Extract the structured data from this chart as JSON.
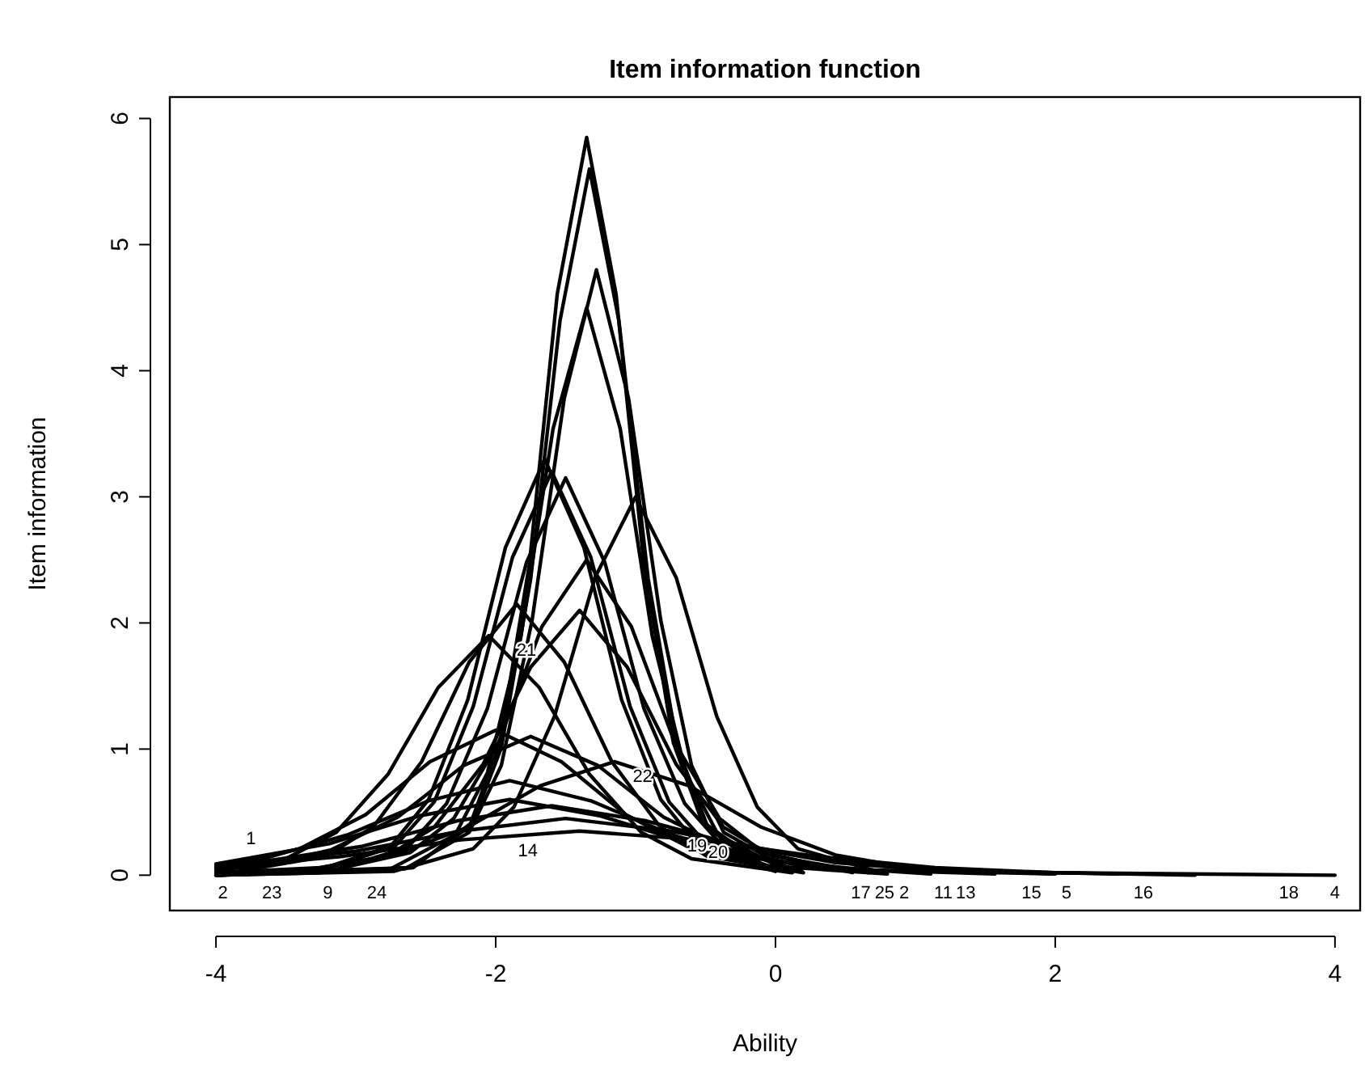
{
  "chart_data": {
    "type": "line",
    "title": "Item information function",
    "xlabel": "Ability",
    "ylabel": "Item information",
    "xlim": [
      -4.33,
      4.18
    ],
    "ylim": [
      -0.28,
      6.17
    ],
    "xticks": [
      -4,
      -2,
      0,
      2,
      4
    ],
    "yticks": [
      0,
      1,
      2,
      3,
      4,
      5,
      6
    ],
    "grid": false,
    "marker": "none",
    "line_style": "solid",
    "series": [
      {
        "color": "#000000",
        "x": [
          -4,
          -2.59,
          -2.18,
          -1.97,
          -1.76,
          -1.56,
          -1.35,
          -1.14,
          -0.94,
          -0.73,
          -0.52,
          -0.11
        ],
        "values": [
          0,
          0.06,
          0.41,
          1.05,
          2.46,
          4.61,
          5.85,
          4.61,
          2.46,
          1.05,
          0.41,
          0.06
        ]
      },
      {
        "color": "#000000",
        "x": [
          -4,
          -2.6,
          -2.17,
          -1.96,
          -1.75,
          -1.54,
          -1.33,
          -1.12,
          -0.91,
          -0.7,
          -0.49,
          -0.06
        ],
        "values": [
          0.01,
          0.06,
          0.4,
          1.01,
          2.35,
          4.4,
          5.6,
          4.4,
          2.35,
          1.01,
          0.4,
          0.06
        ]
      },
      {
        "color": "#000000",
        "x": [
          -4,
          -2.65,
          -2.19,
          -1.96,
          -1.74,
          -1.51,
          -1.28,
          -1.05,
          -0.82,
          -0.6,
          -0.37,
          0.09
        ],
        "values": [
          0,
          0.05,
          0.34,
          0.87,
          2.02,
          3.78,
          4.8,
          3.78,
          2.02,
          0.87,
          0.34,
          0.05
        ]
      },
      {
        "color": "#000000",
        "x": [
          -4,
          -2.77,
          -2.29,
          -2.06,
          -1.82,
          -1.59,
          -1.35,
          -1.11,
          -0.88,
          -0.64,
          -0.41,
          0.07
        ],
        "values": [
          0.01,
          0.04,
          0.32,
          0.81,
          1.89,
          3.54,
          4.5,
          3.54,
          1.89,
          0.81,
          0.32,
          0.04
        ]
      },
      {
        "color": "#000000",
        "x": [
          -4,
          -3.3,
          -2.75,
          -2.48,
          -2.2,
          -1.93,
          -1.65,
          -1.37,
          -1.1,
          -0.82,
          -0.55,
          0
        ],
        "values": [
          0,
          0.03,
          0.23,
          0.6,
          1.39,
          2.6,
          3.3,
          2.6,
          1.39,
          0.6,
          0.23,
          0.03
        ]
      },
      {
        "color": "#000000",
        "x": [
          -4,
          -3.27,
          -2.72,
          -2.44,
          -2.16,
          -1.88,
          -1.6,
          -1.32,
          -1.04,
          -0.76,
          -0.48,
          0.07
        ],
        "values": [
          0.01,
          0.03,
          0.23,
          0.58,
          1.34,
          2.52,
          3.2,
          2.52,
          1.34,
          0.58,
          0.23,
          0.03
        ]
      },
      {
        "color": "#000000",
        "x": [
          -4,
          -3.19,
          -2.63,
          -2.35,
          -2.06,
          -1.78,
          -1.5,
          -1.22,
          -0.94,
          -0.65,
          -0.37,
          0.19
        ],
        "values": [
          0,
          0.03,
          0.22,
          0.57,
          1.32,
          2.48,
          3.15,
          2.48,
          1.32,
          0.57,
          0.22,
          0.03
        ]
      },
      {
        "color": "#000000",
        "x": [
          -4,
          -2.73,
          -2.16,
          -1.87,
          -1.58,
          -1.29,
          -1,
          -0.71,
          -0.42,
          -0.13,
          0.16,
          0.73
        ],
        "values": [
          0,
          0.03,
          0.21,
          0.54,
          1.26,
          2.36,
          3,
          2.36,
          1.26,
          0.54,
          0.21,
          0.03
        ]
      },
      {
        "color": "#000000",
        "x": [
          -4,
          -3.25,
          -2.61,
          -2.3,
          -1.98,
          -1.67,
          -1.35,
          -1.03,
          -0.72,
          -0.4,
          -0.09,
          0.55
        ],
        "values": [
          0,
          0.02,
          0.18,
          0.45,
          1.05,
          1.97,
          2.5,
          1.97,
          1.05,
          0.45,
          0.18,
          0.02
        ]
      },
      {
        "color": "#000000",
        "x": [
          -4,
          -3.47,
          -2.78,
          -2.44,
          -2.09,
          -1.75,
          -1.4,
          -1.06,
          -0.71,
          -0.37,
          -0.02,
          0.67
        ],
        "values": [
          0,
          0.02,
          0.15,
          0.38,
          0.88,
          1.65,
          2.1,
          1.65,
          0.88,
          0.38,
          0.15,
          0.02
        ]
      },
      {
        "color": "#000000",
        "x": [
          -4,
          -3.9,
          -3.21,
          -2.87,
          -2.53,
          -2.19,
          -1.85,
          -1.51,
          -1.17,
          -0.83,
          -0.49,
          0.2
        ],
        "values": [
          0.02,
          0.02,
          0.15,
          0.39,
          0.9,
          1.69,
          2.15,
          1.69,
          0.9,
          0.39,
          0.15,
          0.02
        ]
      },
      {
        "color": "#000000",
        "x": [
          -4,
          -3.5,
          -3.14,
          -2.77,
          -2.41,
          -2.05,
          -1.69,
          -1.33,
          -0.96,
          -0.6,
          0.12
        ],
        "values": [
          0.03,
          0.13,
          0.34,
          0.8,
          1.49,
          1.9,
          1.49,
          0.8,
          0.34,
          0.13,
          0.02
        ]
      },
      {
        "color": "#000000",
        "x": [
          -4,
          -3.4,
          -2.93,
          -2.47,
          -2,
          -1.53,
          -1.07,
          -0.6,
          -0.13,
          0.8
        ],
        "values": [
          0.06,
          0.21,
          0.48,
          0.9,
          1.15,
          0.9,
          0.48,
          0.21,
          0.08,
          0.01
        ]
      },
      {
        "color": "#000000",
        "x": [
          -4,
          -3.65,
          -3.18,
          -2.7,
          -2.23,
          -1.75,
          -1.27,
          -0.8,
          -0.32,
          0.15,
          1.11
        ],
        "values": [
          0.04,
          0.08,
          0.2,
          0.46,
          0.87,
          1.1,
          0.87,
          0.46,
          0.2,
          0.08,
          0.01
        ]
      },
      {
        "color": "#000000",
        "x": [
          -4,
          -3.25,
          -2.73,
          -2.2,
          -1.68,
          -1.15,
          -0.62,
          -0.1,
          0.43,
          0.95,
          2
        ],
        "values": [
          0.02,
          0.06,
          0.16,
          0.38,
          0.71,
          0.9,
          0.71,
          0.38,
          0.16,
          0.06,
          0.01
        ]
      },
      {
        "color": "#000000",
        "x": [
          -4,
          -3.63,
          -3.06,
          -2.48,
          -1.9,
          -1.32,
          -0.74,
          -0.17,
          0.41,
          1.57
        ],
        "values": [
          0.08,
          0.14,
          0.32,
          0.59,
          0.75,
          0.59,
          0.32,
          0.14,
          0.05,
          0.01
        ]
      },
      {
        "color": "#000000",
        "x": [
          -4,
          -3.19,
          -2.55,
          -1.9,
          -1.25,
          -0.61,
          0.04,
          0.68,
          2
        ],
        "values": [
          0.09,
          0.25,
          0.47,
          0.6,
          0.47,
          0.25,
          0.11,
          0.04,
          0.01
        ]
      },
      {
        "color": "#000000",
        "x": [
          -4,
          -2.95,
          -2.28,
          -1.6,
          -0.92,
          -0.25,
          0.43,
          1.1,
          2.46
        ],
        "values": [
          0.05,
          0.23,
          0.43,
          0.55,
          0.43,
          0.23,
          0.1,
          0.04,
          0.01
        ]
      },
      {
        "color": "#000000",
        "x": [
          -4,
          -3,
          -2.25,
          -1.5,
          -0.75,
          0,
          0.74,
          1.48,
          3
        ],
        "values": [
          0.07,
          0.19,
          0.35,
          0.45,
          0.35,
          0.19,
          0.08,
          0.03,
          0
        ]
      },
      {
        "color": "#000000",
        "x": [
          -4,
          -3.09,
          -2.25,
          -1.4,
          -0.55,
          0.29,
          1.14,
          1.99,
          4
        ],
        "values": [
          0.06,
          0.15,
          0.28,
          0.35,
          0.28,
          0.15,
          0.06,
          0.02,
          0
        ]
      }
    ],
    "annotations": [
      {
        "text": "2",
        "x": -3.95,
        "y": -0.13
      },
      {
        "text": "1",
        "x": -3.75,
        "y": 0.3
      },
      {
        "text": "23",
        "x": -3.6,
        "y": -0.13
      },
      {
        "text": "9",
        "x": -3.2,
        "y": -0.13
      },
      {
        "text": "24",
        "x": -2.85,
        "y": -0.13
      },
      {
        "text": "14",
        "x": -1.77,
        "y": 0.2
      },
      {
        "text": "21",
        "x": -1.78,
        "y": 1.79
      },
      {
        "text": "22",
        "x": -0.95,
        "y": 0.79
      },
      {
        "text": "19",
        "x": -0.56,
        "y": 0.24
      },
      {
        "text": "20",
        "x": -0.41,
        "y": 0.19
      },
      {
        "text": "17",
        "x": 0.61,
        "y": -0.13
      },
      {
        "text": "25",
        "x": 0.78,
        "y": -0.13
      },
      {
        "text": "2",
        "x": 0.92,
        "y": -0.13
      },
      {
        "text": "11",
        "x": 1.2,
        "y": -0.13
      },
      {
        "text": "13",
        "x": 1.36,
        "y": -0.13
      },
      {
        "text": "15",
        "x": 1.83,
        "y": -0.13
      },
      {
        "text": "5",
        "x": 2.08,
        "y": -0.13
      },
      {
        "text": "16",
        "x": 2.63,
        "y": -0.13
      },
      {
        "text": "18",
        "x": 3.67,
        "y": -0.13
      },
      {
        "text": "4",
        "x": 4,
        "y": -0.13
      }
    ]
  }
}
